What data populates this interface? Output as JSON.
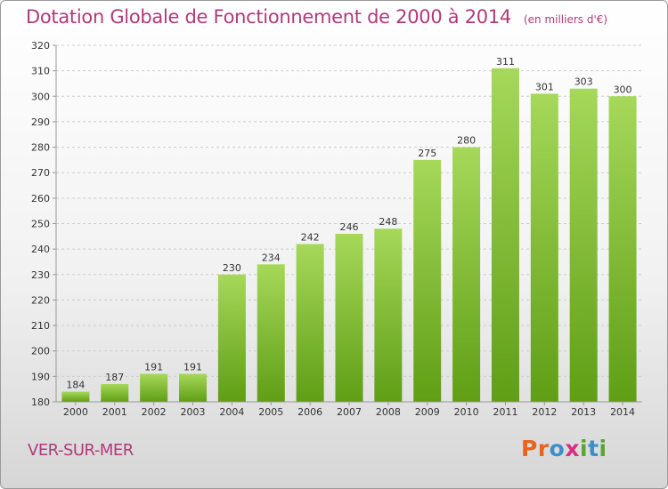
{
  "title": "Dotation Globale de Fonctionnement de 2000 à 2014",
  "subtitle": "(en milliers d'€)",
  "commune": "VER-SUR-MER",
  "logo": {
    "letters": [
      "P",
      "r",
      "o",
      "x",
      "i",
      "t",
      "i"
    ],
    "colors": [
      "#e5641f",
      "#e5641f",
      "#3a8fd1",
      "#d92e83",
      "#5aa532",
      "#3a8fd1",
      "#5aa532"
    ]
  },
  "colors": {
    "title": "#b03a7a",
    "bar_light": "#a6d85a",
    "bar_dark": "#5f9e15",
    "axis": "#999999",
    "grid": "#cccccc"
  },
  "chart_data": {
    "type": "bar",
    "categories": [
      "2000",
      "2001",
      "2002",
      "2003",
      "2004",
      "2005",
      "2006",
      "2007",
      "2008",
      "2009",
      "2010",
      "2011",
      "2012",
      "2013",
      "2014"
    ],
    "values": [
      184,
      187,
      191,
      191,
      230,
      234,
      242,
      246,
      248,
      275,
      280,
      311,
      301,
      303,
      300
    ],
    "ylim": [
      180,
      320
    ],
    "yticks": [
      180,
      190,
      200,
      210,
      220,
      230,
      240,
      250,
      260,
      270,
      280,
      290,
      300,
      310,
      320
    ],
    "grid": "horizontal dashed",
    "title": "Dotation Globale de Fonctionnement de 2000 à 2014",
    "xlabel": "",
    "ylabel": ""
  }
}
